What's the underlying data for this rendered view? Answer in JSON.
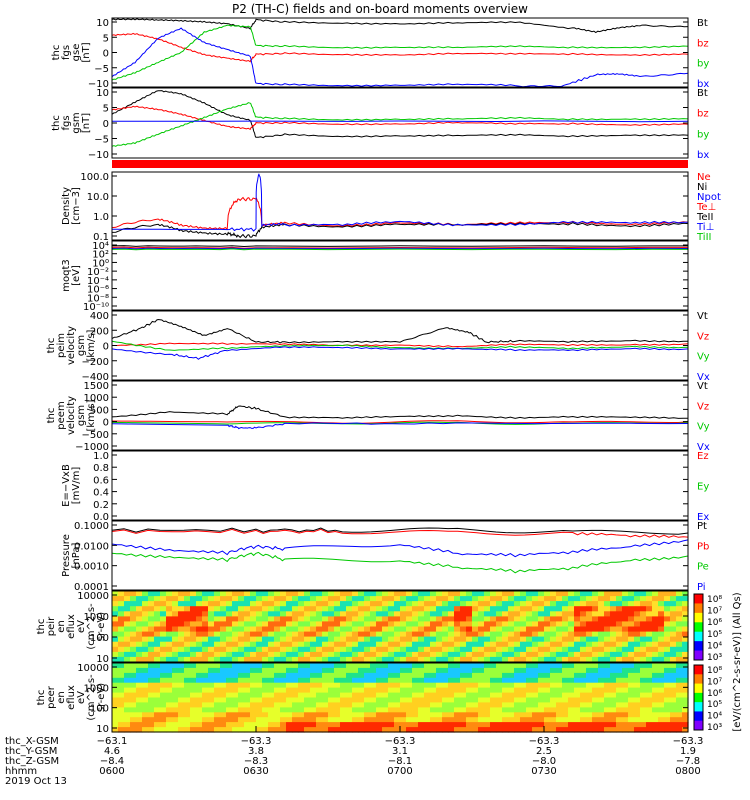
{
  "title": "P2 (TH-C) fields and on-board moments overview",
  "chart_data": [
    {
      "type": "line",
      "ylabel": [
        "thc",
        "fgs",
        "gse",
        "[nT]"
      ],
      "yticks": [
        "10",
        "5",
        "0",
        "−5",
        "−10"
      ],
      "ylim": [
        -10,
        10
      ],
      "legend": [
        {
          "name": "Bt",
          "color": "#000000"
        },
        {
          "name": "bz",
          "color": "#ff0000"
        },
        {
          "name": "by",
          "color": "#00c800"
        },
        {
          "name": "bx",
          "color": "#0000ff"
        }
      ],
      "series": [
        {
          "name": "Bt",
          "color": "#000000",
          "x": [
            0,
            4,
            8,
            12,
            16,
            20,
            24,
            25,
            30,
            40,
            50,
            60,
            70,
            80,
            84,
            88,
            92,
            100
          ],
          "y": [
            9.6,
            9.5,
            9.3,
            9.2,
            9,
            8.5,
            7,
            9.5,
            8.8,
            8.6,
            8.4,
            8.5,
            8.7,
            7,
            5.8,
            7.2,
            8,
            7.5
          ]
        },
        {
          "name": "bz",
          "color": "#ff0000",
          "x": [
            0,
            4,
            8,
            12,
            16,
            20,
            24,
            25,
            30,
            40,
            50,
            60,
            70,
            80,
            90,
            100
          ],
          "y": [
            5,
            5.3,
            3.8,
            1.5,
            -0.5,
            -1.5,
            -2.5,
            -0.5,
            -0.3,
            -0.5,
            -0.6,
            -0.4,
            -0.5,
            -0.4,
            -0.6,
            -0.5
          ]
        },
        {
          "name": "by",
          "color": "#00c800",
          "x": [
            0,
            4,
            8,
            12,
            16,
            20,
            24,
            25,
            30,
            40,
            50,
            60,
            70,
            80,
            90,
            100
          ],
          "y": [
            -8,
            -6,
            -3,
            0,
            6,
            8,
            7.5,
            2,
            1.8,
            1.5,
            1.6,
            1.4,
            1.7,
            1.5,
            1.6,
            1.8
          ]
        },
        {
          "name": "bx",
          "color": "#0000ff",
          "x": [
            0,
            4,
            8,
            12,
            16,
            20,
            24,
            25,
            30,
            40,
            50,
            60,
            70,
            78,
            84,
            88,
            92,
            100
          ],
          "y": [
            -7,
            -3,
            4,
            7,
            3,
            1,
            -1,
            -9,
            -9.3,
            -9.5,
            -9.4,
            -9.3,
            -9.6,
            -9.8,
            -6.5,
            -6.2,
            -6.8,
            -6
          ]
        }
      ]
    },
    {
      "type": "line",
      "ylabel": [
        "thc",
        "fgs",
        "gsm",
        "[nT]"
      ],
      "yticks": [
        "10",
        "5",
        "0",
        "−5",
        "−10"
      ],
      "ylim": [
        -12,
        12
      ],
      "legend": [
        {
          "name": "Bt",
          "color": "#000000"
        },
        {
          "name": "bz",
          "color": "#ff0000"
        },
        {
          "name": "by",
          "color": "#00c800"
        },
        {
          "name": "bx",
          "color": "#0000ff"
        }
      ],
      "series": [
        {
          "name": "Bt",
          "color": "#000000",
          "x": [
            0,
            4,
            8,
            12,
            16,
            20,
            24,
            25,
            30,
            40,
            50,
            60,
            70,
            80,
            90,
            100
          ],
          "y": [
            3,
            7,
            11,
            10,
            7,
            3,
            1,
            -5,
            -4,
            -4.5,
            -4.3,
            -4.4,
            -4.2,
            -4.5,
            -4,
            -4.2
          ]
        },
        {
          "name": "bz",
          "color": "#ff0000",
          "x": [
            0,
            4,
            8,
            12,
            16,
            20,
            24,
            25,
            30,
            40,
            50,
            60,
            70,
            80,
            90,
            100
          ],
          "y": [
            4.5,
            5.5,
            4.5,
            3,
            1,
            -1,
            -2,
            0,
            0,
            -0.3,
            -0.2,
            0,
            -0.4,
            -0.2,
            -0.5,
            -0.4
          ]
        },
        {
          "name": "by",
          "color": "#00c800",
          "x": [
            0,
            4,
            8,
            12,
            16,
            20,
            24,
            25,
            30,
            40,
            50,
            60,
            70,
            80,
            90,
            100
          ],
          "y": [
            -8,
            -7,
            -4,
            -1,
            2,
            5,
            7,
            2,
            1.5,
            1.2,
            1.4,
            1.3,
            1.6,
            1.3,
            1.5,
            1.4
          ]
        },
        {
          "name": "bx",
          "color": "#0000ff",
          "x": [
            0,
            100
          ],
          "y": [
            0.6,
            0.6
          ]
        }
      ]
    },
    {
      "type": "line",
      "scale": "log",
      "ylabel": [
        "Density",
        "[cm−3]"
      ],
      "yticks": [
        "100.0",
        "10.0",
        "1.0",
        "0.1"
      ],
      "ylim": [
        0.03,
        200
      ],
      "legend": [
        {
          "name": "Ne",
          "color": "#ff0000"
        },
        {
          "name": "Ni",
          "color": "#000000"
        },
        {
          "name": "Npot",
          "color": "#0000ff"
        },
        {
          "name": "Te⊥",
          "color": "#ff0000"
        },
        {
          "name": "TeII",
          "color": "#000000"
        },
        {
          "name": "Ti⊥",
          "color": "#0000ff"
        },
        {
          "name": "TiII",
          "color": "#00c800"
        }
      ],
      "series": [
        {
          "name": "Ne",
          "color": "#ff0000",
          "x": [
            0,
            8,
            12,
            16,
            20,
            22,
            25,
            26,
            30,
            40,
            50,
            60,
            70,
            80,
            90,
            100
          ],
          "y": [
            0.15,
            0.4,
            0.2,
            0.15,
            0.15,
            6,
            6,
            0.2,
            0.25,
            0.2,
            0.3,
            0.2,
            0.25,
            0.3,
            0.25,
            0.3
          ]
        },
        {
          "name": "Ni",
          "color": "#000000",
          "x": [
            0,
            8,
            12,
            16,
            20,
            22,
            25,
            26,
            30,
            40,
            50,
            60,
            70,
            80,
            90,
            100
          ],
          "y": [
            0.08,
            0.2,
            0.1,
            0.08,
            0.07,
            0.05,
            0.05,
            0.15,
            0.2,
            0.18,
            0.25,
            0.2,
            0.22,
            0.25,
            0.2,
            0.25
          ]
        },
        {
          "name": "Npot",
          "color": "#0000ff",
          "x": [
            0,
            20,
            25,
            25.5,
            26,
            30,
            40,
            50,
            60,
            70,
            80,
            90,
            100
          ],
          "y": [
            0.12,
            0.12,
            0.12,
            150,
            0.2,
            0.22,
            0.2,
            0.3,
            0.22,
            0.25,
            0.3,
            0.25,
            0.3
          ]
        }
      ]
    },
    {
      "type": "line",
      "scale": "log",
      "ylabel": [
        "moqt3",
        "[eV]"
      ],
      "yticks": [
        "10⁴",
        "10²",
        "10⁰",
        "10⁻²",
        "10⁻⁴",
        "10⁻⁶",
        "10⁻⁸",
        "10⁻¹⁰"
      ],
      "ylim": [
        1e-10,
        10000
      ],
      "series": [
        {
          "name": "TeII",
          "color": "#000000",
          "x": [
            0,
            25,
            100
          ],
          "y": [
            1000,
            900,
            1000
          ]
        },
        {
          "name": "Te⊥",
          "color": "#ff0000",
          "x": [
            0,
            25,
            100
          ],
          "y": [
            500,
            400,
            500
          ]
        },
        {
          "name": "Ti⊥",
          "color": "#0000ff",
          "x": [
            0,
            25,
            100
          ],
          "y": [
            300,
            300,
            300
          ]
        },
        {
          "name": "TiII",
          "color": "#00c800",
          "x": [
            0,
            25,
            100
          ],
          "y": [
            200,
            200,
            200
          ]
        }
      ]
    },
    {
      "type": "line",
      "ylabel": [
        "thc",
        "peim",
        "velocity",
        "gsm",
        "[km/s]"
      ],
      "yticks": [
        "400",
        "200",
        "0",
        "−200",
        "−400"
      ],
      "ylim": [
        -400,
        400
      ],
      "legend": [
        {
          "name": "Vt",
          "color": "#000000"
        },
        {
          "name": "Vz",
          "color": "#ff0000"
        },
        {
          "name": "Vy",
          "color": "#00c800"
        },
        {
          "name": "Vx",
          "color": "#0000ff"
        }
      ],
      "series": [
        {
          "name": "Vt",
          "color": "#000000",
          "x": [
            0,
            5,
            8,
            12,
            16,
            20,
            25,
            30,
            40,
            50,
            58,
            62,
            65,
            70,
            80,
            90,
            100
          ],
          "y": [
            80,
            200,
            300,
            220,
            120,
            200,
            40,
            40,
            50,
            40,
            200,
            150,
            40,
            50,
            40,
            60,
            50
          ]
        },
        {
          "name": "Vz",
          "color": "#ff0000",
          "x": [
            0,
            10,
            20,
            30,
            40,
            50,
            60,
            70,
            80,
            90,
            100
          ],
          "y": [
            0,
            30,
            20,
            10,
            0,
            10,
            -10,
            10,
            0,
            10,
            20
          ]
        },
        {
          "name": "Vy",
          "color": "#00c800",
          "x": [
            0,
            10,
            20,
            30,
            40,
            50,
            60,
            70,
            80,
            90,
            100
          ],
          "y": [
            50,
            -50,
            -30,
            -10,
            0,
            -20,
            -30,
            -20,
            -40,
            -10,
            -20
          ]
        },
        {
          "name": "Vx",
          "color": "#0000ff",
          "x": [
            0,
            10,
            15,
            20,
            30,
            40,
            50,
            60,
            70,
            80,
            90,
            100
          ],
          "y": [
            -40,
            -100,
            -150,
            -50,
            -20,
            -30,
            -40,
            -30,
            -50,
            -60,
            -40,
            -40
          ]
        }
      ]
    },
    {
      "type": "line",
      "ylabel": [
        "thc",
        "peem",
        "velocity",
        "gsm",
        "[km/s]"
      ],
      "yticks": [
        "1500",
        "1000",
        "500",
        "0",
        "−500",
        "−1000"
      ],
      "ylim": [
        -1000,
        1500
      ],
      "legend": [
        {
          "name": "Vt",
          "color": "#000000"
        },
        {
          "name": "Vz",
          "color": "#ff0000"
        },
        {
          "name": "Vy",
          "color": "#00c800"
        },
        {
          "name": "Vx",
          "color": "#0000ff"
        }
      ],
      "series": [
        {
          "name": "Vt",
          "color": "#000000",
          "x": [
            0,
            10,
            20,
            22,
            25,
            30,
            40,
            50,
            60,
            70,
            80,
            90,
            100
          ],
          "y": [
            200,
            400,
            300,
            600,
            500,
            200,
            150,
            200,
            250,
            180,
            200,
            170,
            150
          ]
        },
        {
          "name": "Vz",
          "color": "#ff0000",
          "x": [
            0,
            20,
            40,
            60,
            80,
            100
          ],
          "y": [
            50,
            20,
            0,
            30,
            10,
            20
          ]
        },
        {
          "name": "Vy",
          "color": "#00c800",
          "x": [
            0,
            20,
            40,
            60,
            80,
            100
          ],
          "y": [
            0,
            -50,
            -20,
            -30,
            -40,
            -10
          ]
        },
        {
          "name": "Vx",
          "color": "#0000ff",
          "x": [
            0,
            20,
            22,
            25,
            30,
            60,
            100
          ],
          "y": [
            -50,
            -100,
            -200,
            -200,
            -50,
            -30,
            -40
          ]
        }
      ]
    },
    {
      "type": "line",
      "ylabel": [
        "E=−VxB",
        "[mV/m]"
      ],
      "yticks": [
        "1.0",
        "0.8",
        "0.6",
        "0.4",
        "0.2",
        "0.0"
      ],
      "ylim": [
        0,
        1
      ],
      "legend": [
        {
          "name": "Ez",
          "color": "#ff0000"
        },
        {
          "name": "Ey",
          "color": "#00c800"
        },
        {
          "name": "Ex",
          "color": "#0000ff"
        }
      ],
      "series": []
    },
    {
      "type": "line",
      "scale": "log",
      "ylabel": [
        "Pressure",
        "[nPa]"
      ],
      "yticks": [
        "0.1000",
        "0.0100",
        "0.0010",
        "0.0001"
      ],
      "ylim": [
        0.0001,
        0.1
      ],
      "legend": [
        {
          "name": "Pt",
          "color": "#000000"
        },
        {
          "name": "Pb",
          "color": "#ff0000"
        },
        {
          "name": "Pe",
          "color": "#00c800"
        },
        {
          "name": "Pi",
          "color": "#0000ff"
        }
      ],
      "series": [
        {
          "name": "Pt",
          "color": "#000000",
          "x": [
            0,
            25,
            40,
            60,
            80,
            100
          ],
          "y": [
            0.04,
            0.04,
            0.04,
            0.04,
            0.035,
            0.03
          ]
        },
        {
          "name": "Pb",
          "color": "#ff0000",
          "x": [
            0,
            25,
            40,
            60,
            80,
            90,
            100
          ],
          "y": [
            0.035,
            0.035,
            0.035,
            0.03,
            0.03,
            0.02,
            0.02
          ]
        },
        {
          "name": "Pe",
          "color": "#00c800",
          "x": [
            0,
            10,
            20,
            25,
            30,
            50,
            60,
            70,
            80,
            90,
            100
          ],
          "y": [
            0.004,
            0.003,
            0.002,
            0.004,
            0.002,
            0.002,
            0.001,
            0.0006,
            0.0008,
            0.002,
            0.003
          ]
        },
        {
          "name": "Pi",
          "color": "#0000ff",
          "x": [
            0,
            10,
            20,
            25,
            30,
            50,
            60,
            70,
            80,
            90,
            100
          ],
          "y": [
            0.01,
            0.006,
            0.004,
            0.008,
            0.006,
            0.01,
            0.004,
            0.003,
            0.004,
            0.008,
            0.015
          ]
        }
      ]
    },
    {
      "type": "heatmap",
      "ylabel": [
        "thc",
        "peir",
        "en",
        "eflux",
        "eV",
        "(cm^2-s-",
        "sr-eV)"
      ],
      "yticks": [
        "10000",
        "1000",
        "100",
        "10"
      ]
    },
    {
      "type": "heatmap",
      "ylabel": [
        "thc",
        "peer",
        "en",
        "eflux",
        "eV",
        "(cm^2-s-",
        "sr-eV)"
      ],
      "yticks": [
        "10000",
        "1000",
        "100",
        "10"
      ]
    }
  ],
  "colorbar": {
    "label": "[eV/(cm^2-s-sr-eV)] (All Qs)",
    "ticks_ions": [
      "10⁸",
      "10⁷",
      "10⁶",
      "10⁵",
      "10⁴",
      "10³"
    ],
    "ticks_electrons": [
      "10⁸",
      "10⁷",
      "10⁶",
      "10⁵",
      "10⁴",
      "10³"
    ]
  },
  "x_axis": {
    "row_labels": [
      "thc_X-GSM",
      "thc_Y-GSM",
      "thc_Z-GSM",
      "hhmm",
      "2019 Oct 13"
    ],
    "ticks": [
      {
        "x": "−63.1",
        "y": "4.6",
        "z": "−8.4",
        "t": "0600"
      },
      {
        "x": "−63.3",
        "y": "3.8",
        "z": "−8.3",
        "t": "0630"
      },
      {
        "x": "−63.3",
        "y": "3.1",
        "z": "−8.1",
        "t": "0700"
      },
      {
        "x": "−63.3",
        "y": "2.5",
        "z": "−8.0",
        "t": "0730"
      },
      {
        "x": "−63.3",
        "y": "1.9",
        "z": "−7.8",
        "t": "0800"
      }
    ]
  }
}
